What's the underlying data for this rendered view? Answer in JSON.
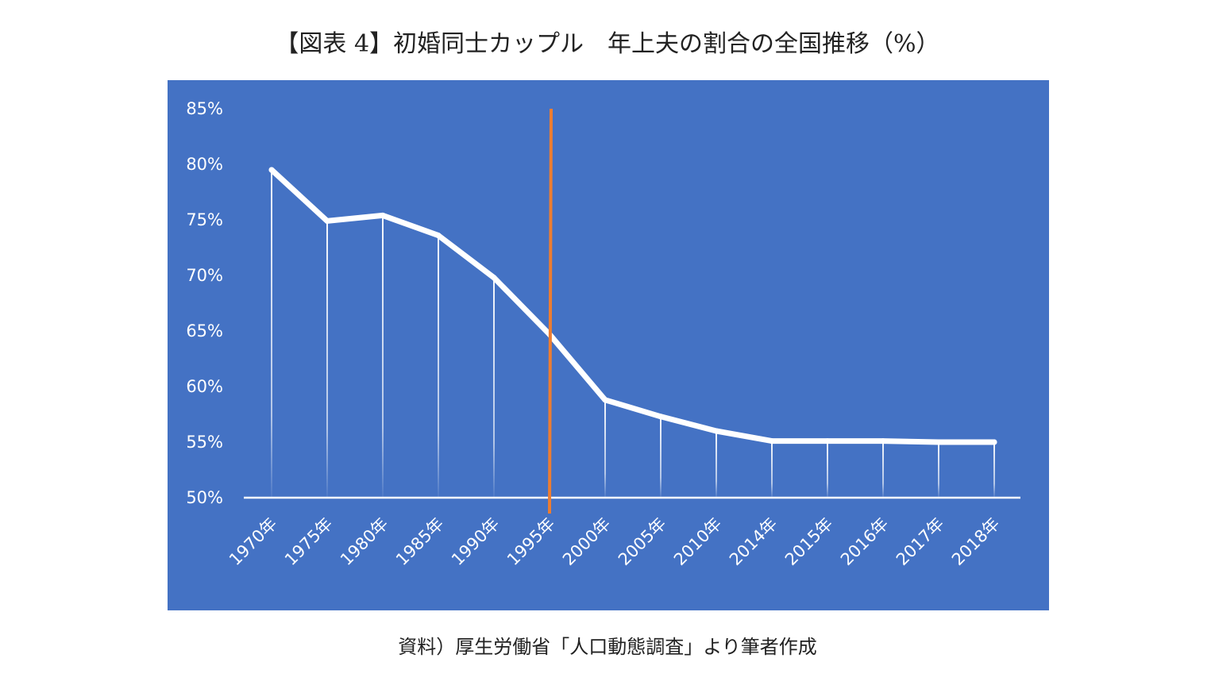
{
  "title": "【図表 4】初婚同士カップル　年上夫の割合の全国推移（%）",
  "source": "資料）厚生労働省「人口動態調査」より筆者作成",
  "colors": {
    "panel": "#4472c4",
    "line": "#ffffff",
    "marker_line": "#ed7d31"
  },
  "chart_data": {
    "type": "line",
    "categories": [
      "1970年",
      "1975年",
      "1980年",
      "1985年",
      "1990年",
      "1995年",
      "2000年",
      "2005年",
      "2010年",
      "2014年",
      "2015年",
      "2016年",
      "2017年",
      "2018年"
    ],
    "values": [
      79.5,
      74.9,
      75.4,
      73.6,
      69.8,
      64.7,
      58.8,
      57.3,
      56.0,
      55.1,
      55.1,
      55.1,
      55.0,
      55.0
    ],
    "ylim": [
      50,
      85
    ],
    "yticks": [
      50,
      55,
      60,
      65,
      70,
      75,
      80,
      85
    ],
    "ytick_labels": [
      "50%",
      "55%",
      "60%",
      "65%",
      "70%",
      "75%",
      "80%",
      "85%"
    ],
    "drop_lines": true,
    "vertical_marker_x": "1995年",
    "grid": false,
    "legend": "none",
    "xlabel": "",
    "ylabel": ""
  }
}
